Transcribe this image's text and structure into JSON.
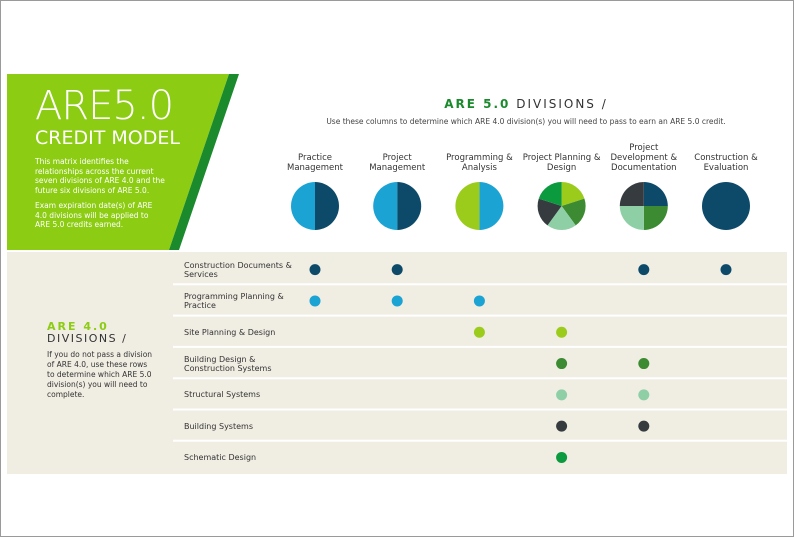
{
  "header": {
    "title": "ARE5.0",
    "subtitle": "CREDIT MODEL",
    "paragraphs": [
      "This matrix identifies the relationships across the current seven divisions of ARE 4.0 and the future six divisions of ARE 5.0.",
      "Exam expiration date(s) of ARE 4.0 divisions will be applied to ARE 5.0 credits earned."
    ]
  },
  "divisions_5": {
    "title": "ARE 5.0",
    "title_suffix": "DIVISIONS /",
    "subtitle": "Use these columns to determine which ARE 4.0 division(s) you will need to pass to earn an ARE 5.0 credit.",
    "columns": [
      "Practice Management",
      "Project Management",
      "Programming & Analysis",
      "Project Planning & Design",
      "Project Development & Documentation",
      "Construction & Evaluation"
    ]
  },
  "divisions_4": {
    "title": "ARE 4.0",
    "title_suffix": "DIVISIONS /",
    "text": "If you do not pass a division of ARE 4.0, use these rows to determine which ARE 5.0 division(s) you will need to complete.",
    "rows": [
      {
        "label": "Construction Documents & Services",
        "color": "#0d4a6a",
        "columns": [
          0,
          1,
          4,
          5
        ]
      },
      {
        "label": "Programming Planning & Practice",
        "color": "#1ba3d4",
        "columns": [
          0,
          1,
          2
        ]
      },
      {
        "label": "Site Planning & Design",
        "color": "#9bcc1c",
        "columns": [
          2,
          3
        ]
      },
      {
        "label": "Building Design & Construction Systems",
        "color": "#3c8a31",
        "columns": [
          3,
          4
        ]
      },
      {
        "label": "Structural Systems",
        "color": "#8fcfa6",
        "columns": [
          3,
          4
        ]
      },
      {
        "label": "Building Systems",
        "color": "#353b3f",
        "columns": [
          3,
          4
        ]
      },
      {
        "label": "Schematic Design",
        "color": "#0b9a3d",
        "columns": [
          3
        ]
      }
    ]
  }
}
